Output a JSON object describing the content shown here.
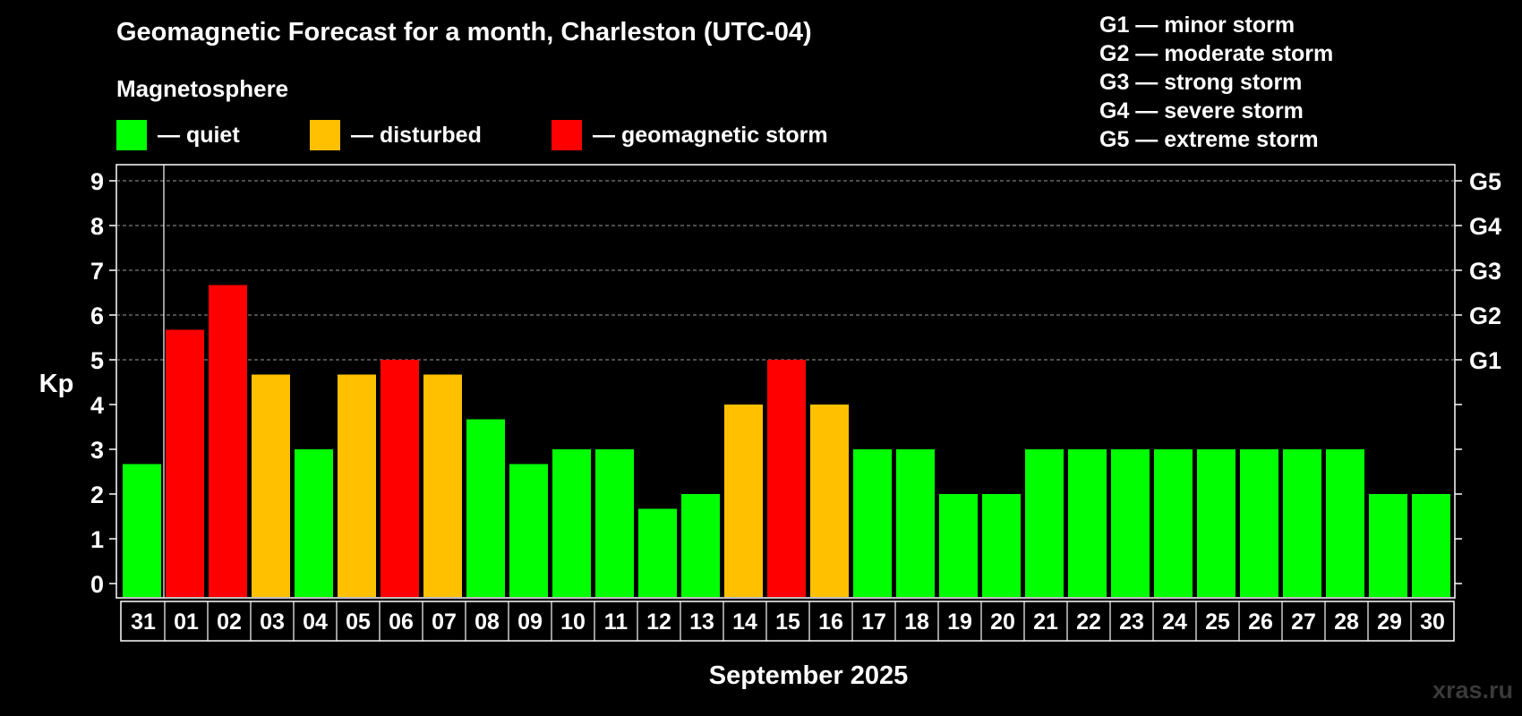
{
  "header": {
    "title": "Geomagnetic Forecast for a month, Charleston (UTC-04)",
    "subtitle": "Magnetosphere"
  },
  "legend": [
    {
      "label": "— quiet",
      "color": "#00ff00"
    },
    {
      "label": "— disturbed",
      "color": "#ffc000"
    },
    {
      "label": "— geomagnetic storm",
      "color": "#ff0000"
    }
  ],
  "storm_scale": [
    "G1 — minor storm",
    "G2 — moderate storm",
    "G3 — strong storm",
    "G4 — severe storm",
    "G5 — extreme storm"
  ],
  "watermark": "xras.ru",
  "colors": {
    "quiet": "#00ff00",
    "disturbed": "#ffc000",
    "storm": "#ff0000",
    "background": "#000000",
    "axis": "#ffffff"
  },
  "chart_data": {
    "type": "bar",
    "title": "Geomagnetic Forecast for a month, Charleston (UTC-04)",
    "xlabel": "September 2025",
    "ylabel": "Kp",
    "ylim": [
      0,
      9
    ],
    "yticks": [
      "0",
      "1",
      "2",
      "3",
      "4",
      "5",
      "6",
      "7",
      "8",
      "9"
    ],
    "right_axis": [
      {
        "value": 5,
        "label": "G1"
      },
      {
        "value": 6,
        "label": "G2"
      },
      {
        "value": 7,
        "label": "G3"
      },
      {
        "value": 8,
        "label": "G4"
      },
      {
        "value": 9,
        "label": "G5"
      }
    ],
    "grid": true,
    "categories": [
      "31",
      "01",
      "02",
      "03",
      "04",
      "05",
      "06",
      "07",
      "08",
      "09",
      "10",
      "11",
      "12",
      "13",
      "14",
      "15",
      "16",
      "17",
      "18",
      "19",
      "20",
      "21",
      "22",
      "23",
      "24",
      "25",
      "26",
      "27",
      "28",
      "29",
      "30"
    ],
    "values": [
      2.67,
      5.67,
      6.67,
      4.67,
      3,
      4.67,
      5,
      4.67,
      3.67,
      2.67,
      3,
      3,
      1.67,
      2,
      4,
      5,
      4,
      3,
      3,
      2,
      2,
      3,
      3,
      3,
      3,
      3,
      3,
      3,
      3,
      2,
      2
    ],
    "levels": [
      "quiet",
      "storm",
      "storm",
      "disturbed",
      "quiet",
      "disturbed",
      "storm",
      "disturbed",
      "quiet",
      "quiet",
      "quiet",
      "quiet",
      "quiet",
      "quiet",
      "disturbed",
      "storm",
      "disturbed",
      "quiet",
      "quiet",
      "quiet",
      "quiet",
      "quiet",
      "quiet",
      "quiet",
      "quiet",
      "quiet",
      "quiet",
      "quiet",
      "quiet",
      "quiet",
      "quiet"
    ]
  }
}
